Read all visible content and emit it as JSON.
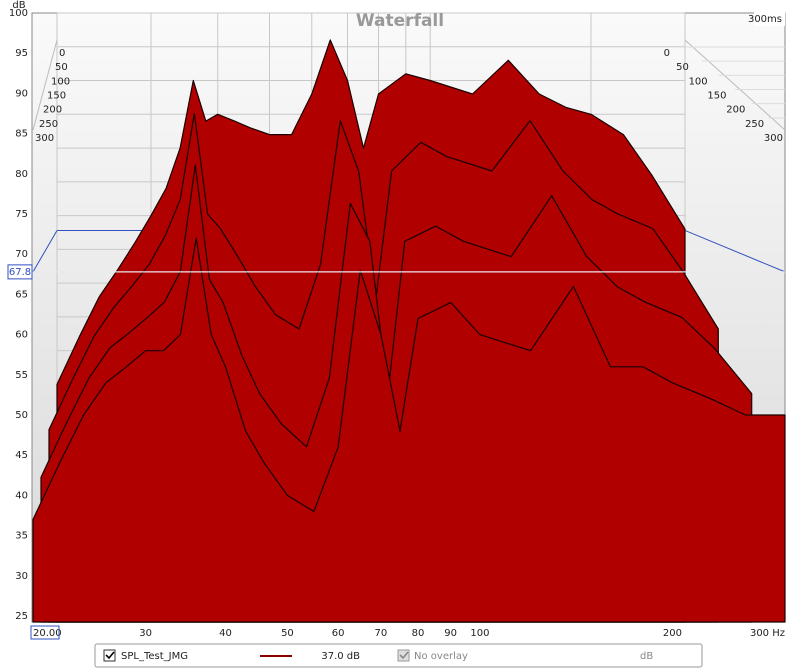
{
  "chart_data": {
    "type": "waterfall",
    "title": "Waterfall",
    "y_unit": "dB",
    "x": [
      20,
      22,
      24,
      26,
      28,
      30,
      32,
      34,
      36,
      38,
      40,
      43,
      46,
      50,
      55,
      60,
      65,
      70,
      75,
      80,
      90,
      100,
      120,
      140,
      160,
      180,
      200,
      230,
      260,
      300
    ],
    "xlim": [
      20,
      300
    ],
    "log_x": true,
    "xticks": [
      {
        "value": 20,
        "label": "20.00"
      },
      30,
      40,
      50,
      60,
      70,
      80,
      90,
      100,
      200,
      {
        "value": 300,
        "label": "300 Hz"
      }
    ],
    "ylim": [
      25,
      100
    ],
    "yticks": [
      25,
      30,
      35,
      40,
      45,
      50,
      55,
      60,
      65,
      70,
      75,
      80,
      85,
      90,
      95,
      100
    ],
    "zlim": [
      0,
      300
    ],
    "zticks": [
      0,
      50,
      100,
      150,
      200,
      250,
      300
    ],
    "z_end_label": "300ms",
    "cursor_y": 67.8,
    "color": "#b00000",
    "slices": [
      {
        "z": 0,
        "values": [
          45,
          52,
          58,
          62,
          66,
          70,
          74,
          80,
          90,
          84,
          85,
          84,
          83,
          82,
          82,
          88,
          96,
          90,
          80,
          88,
          91,
          90,
          88,
          93,
          88,
          86,
          85,
          82,
          76,
          68
        ]
      },
      {
        "z": 100,
        "values": [
          42,
          49,
          55,
          59,
          62,
          65,
          69,
          74,
          86,
          72,
          70,
          66,
          62,
          58,
          56,
          65,
          85,
          78,
          60,
          78,
          82,
          80,
          78,
          85,
          78,
          74,
          72,
          70,
          64,
          56
        ]
      },
      {
        "z": 200,
        "values": [
          39,
          46,
          52,
          56,
          58,
          60,
          62,
          66,
          80,
          65,
          62,
          55,
          50,
          46,
          43,
          52,
          75,
          70,
          50,
          70,
          72,
          70,
          68,
          76,
          68,
          64,
          62,
          60,
          56,
          50
        ]
      },
      {
        "z": 300,
        "values": [
          37,
          44,
          50,
          54,
          56,
          58,
          58,
          60,
          72,
          60,
          56,
          48,
          44,
          40,
          38,
          46,
          68,
          60,
          48,
          62,
          64,
          60,
          58,
          66,
          56,
          56,
          54,
          52,
          50,
          50
        ]
      }
    ],
    "legend": {
      "name": "SPL_Test_JMG",
      "level": "37.0 dB",
      "overlay": "No overlay",
      "unit": "dB"
    }
  }
}
